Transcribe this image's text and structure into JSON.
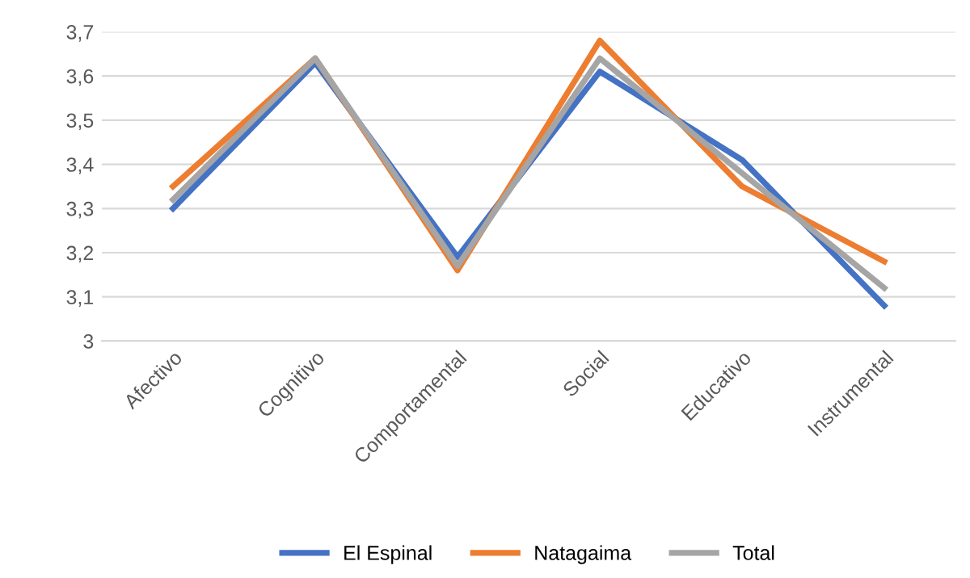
{
  "chart_data": {
    "type": "line",
    "categories": [
      "Afectivo",
      "Cognitivo",
      "Comportamental",
      "Social",
      "Educativo",
      "Instrumental"
    ],
    "series": [
      {
        "name": "El Espinal",
        "color": "#4472c4",
        "values": [
          3.3,
          3.63,
          3.19,
          3.61,
          3.41,
          3.08
        ]
      },
      {
        "name": "Natagaima",
        "color": "#ed7d31",
        "values": [
          3.35,
          3.64,
          3.16,
          3.68,
          3.35,
          3.18
        ]
      },
      {
        "name": "Total",
        "color": "#a5a5a5",
        "values": [
          3.32,
          3.64,
          3.17,
          3.64,
          3.38,
          3.12
        ]
      }
    ],
    "ylim": [
      3,
      3.7
    ],
    "yticks": [
      {
        "value": 3,
        "label": "3"
      },
      {
        "value": 3.1,
        "label": "3,1"
      },
      {
        "value": 3.2,
        "label": "3,2"
      },
      {
        "value": 3.3,
        "label": "3,3"
      },
      {
        "value": 3.4,
        "label": "3,4"
      },
      {
        "value": 3.5,
        "label": "3,5"
      },
      {
        "value": 3.6,
        "label": "3,6"
      },
      {
        "value": 3.7,
        "label": "3,7"
      }
    ],
    "grid": "y",
    "legend": "bottom",
    "marker": "none",
    "line_style": "solid"
  }
}
